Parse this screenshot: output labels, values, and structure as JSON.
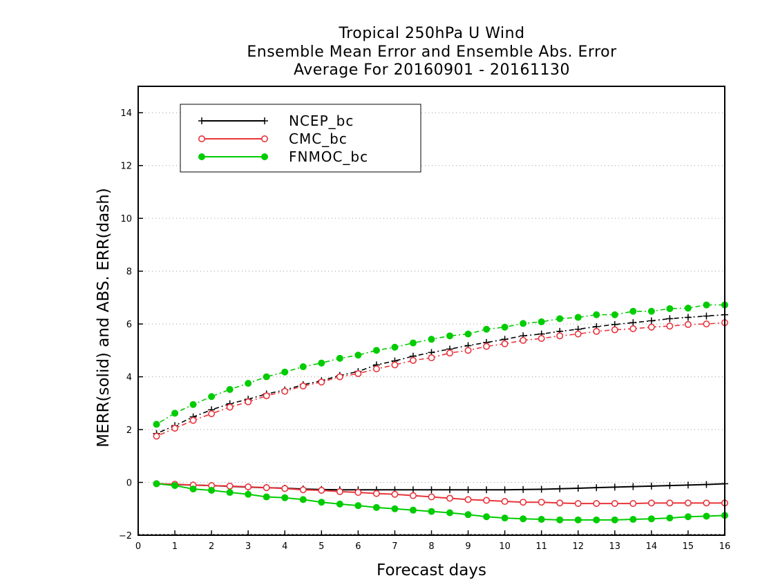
{
  "chart_data": {
    "type": "line",
    "title_lines": [
      "Tropical 250hPa U Wind",
      "Ensemble Mean Error and Ensemble Abs. Error",
      "Average For 20160901 - 20161130"
    ],
    "xlabel": "Forecast days",
    "ylabel": "MERR(solid) and ABS. ERR(dash)",
    "xlim": [
      0,
      16
    ],
    "ylim": [
      -2,
      15
    ],
    "x_ticks": [
      0,
      1,
      2,
      3,
      4,
      5,
      6,
      7,
      8,
      9,
      10,
      11,
      12,
      13,
      14,
      15,
      16
    ],
    "y_ticks": [
      -2,
      0,
      2,
      4,
      6,
      8,
      10,
      12,
      14
    ],
    "grid": "horizontal dotted",
    "legend_position": "top-left",
    "x": [
      0.5,
      1,
      1.5,
      2,
      2.5,
      3,
      3.5,
      4,
      4.5,
      5,
      5.5,
      6,
      6.5,
      7,
      7.5,
      8,
      8.5,
      9,
      9.5,
      10,
      10.5,
      11,
      11.5,
      12,
      12.5,
      13,
      13.5,
      14,
      14.5,
      15,
      15.5,
      16
    ],
    "series": [
      {
        "name": "NCEP_bc",
        "color": "#000000",
        "marker": "plus",
        "mean_error": [
          -0.05,
          -0.08,
          -0.1,
          -0.12,
          -0.15,
          -0.18,
          -0.2,
          -0.22,
          -0.25,
          -0.27,
          -0.28,
          -0.28,
          -0.28,
          -0.28,
          -0.28,
          -0.28,
          -0.28,
          -0.28,
          -0.28,
          -0.28,
          -0.27,
          -0.26,
          -0.24,
          -0.22,
          -0.2,
          -0.18,
          -0.16,
          -0.14,
          -0.12,
          -0.1,
          -0.08,
          -0.05
        ],
        "abs_error": [
          1.85,
          2.15,
          2.48,
          2.75,
          2.98,
          3.15,
          3.35,
          3.5,
          3.7,
          3.85,
          4.05,
          4.2,
          4.45,
          4.6,
          4.78,
          4.92,
          5.05,
          5.18,
          5.3,
          5.42,
          5.55,
          5.62,
          5.72,
          5.8,
          5.9,
          5.98,
          6.05,
          6.12,
          6.2,
          6.25,
          6.3,
          6.35
        ]
      },
      {
        "name": "CMC_bc",
        "color": "#e8333a",
        "marker": "open-circle",
        "mean_error": [
          -0.05,
          -0.07,
          -0.1,
          -0.12,
          -0.14,
          -0.17,
          -0.2,
          -0.23,
          -0.28,
          -0.3,
          -0.35,
          -0.38,
          -0.42,
          -0.45,
          -0.5,
          -0.55,
          -0.6,
          -0.65,
          -0.68,
          -0.72,
          -0.75,
          -0.75,
          -0.78,
          -0.8,
          -0.8,
          -0.8,
          -0.8,
          -0.78,
          -0.78,
          -0.78,
          -0.78,
          -0.78
        ],
        "abs_error": [
          1.75,
          2.05,
          2.35,
          2.6,
          2.85,
          3.05,
          3.28,
          3.45,
          3.65,
          3.8,
          4.0,
          4.12,
          4.3,
          4.45,
          4.62,
          4.72,
          4.9,
          5.0,
          5.15,
          5.25,
          5.38,
          5.45,
          5.55,
          5.62,
          5.72,
          5.78,
          5.82,
          5.88,
          5.92,
          5.98,
          6.0,
          6.05
        ]
      },
      {
        "name": "FNMOC_bc",
        "color": "#00cc00",
        "marker": "filled-circle",
        "mean_error": [
          -0.05,
          -0.12,
          -0.25,
          -0.3,
          -0.38,
          -0.45,
          -0.55,
          -0.58,
          -0.65,
          -0.75,
          -0.82,
          -0.88,
          -0.95,
          -1.0,
          -1.05,
          -1.1,
          -1.15,
          -1.22,
          -1.3,
          -1.35,
          -1.38,
          -1.4,
          -1.42,
          -1.42,
          -1.42,
          -1.42,
          -1.4,
          -1.38,
          -1.35,
          -1.3,
          -1.28,
          -1.25
        ],
        "abs_error": [
          2.2,
          2.62,
          2.95,
          3.25,
          3.52,
          3.75,
          4.0,
          4.18,
          4.38,
          4.52,
          4.7,
          4.82,
          5.0,
          5.12,
          5.28,
          5.42,
          5.55,
          5.62,
          5.8,
          5.88,
          6.02,
          6.08,
          6.2,
          6.25,
          6.35,
          6.35,
          6.48,
          6.48,
          6.58,
          6.6,
          6.72,
          6.72
        ]
      }
    ]
  }
}
